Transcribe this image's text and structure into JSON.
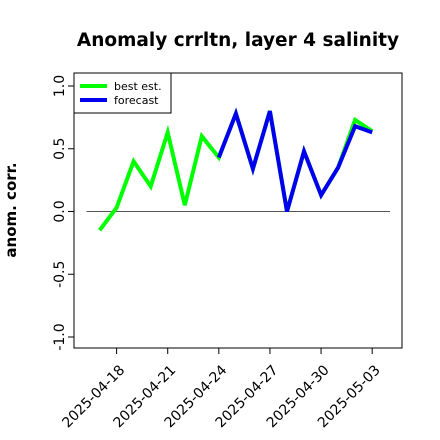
{
  "chart_data": {
    "type": "line",
    "title": "Anomaly crrltn, layer 4 salinity",
    "ylabel": "anom. corr.",
    "xlabel": "",
    "ylim": [
      -1.0,
      1.0
    ],
    "yticks": [
      -1.0,
      -0.5,
      0.0,
      0.5,
      1.0
    ],
    "ytick_labels": [
      "-1.0",
      "-0.5",
      "0.0",
      "0.5",
      "1.0"
    ],
    "x": [
      "2025-04-17",
      "2025-04-18",
      "2025-04-19",
      "2025-04-20",
      "2025-04-21",
      "2025-04-22",
      "2025-04-23",
      "2025-04-24",
      "2025-04-25",
      "2025-04-26",
      "2025-04-27",
      "2025-04-28",
      "2025-04-29",
      "2025-04-30",
      "2025-05-01",
      "2025-05-02",
      "2025-05-03"
    ],
    "xlim": [
      "2025-04-15T12:00",
      "2025-05-04T18:00"
    ],
    "xticks": [
      "2025-04-18",
      "2025-04-21",
      "2025-04-24",
      "2025-04-27",
      "2025-04-30",
      "2025-05-03"
    ],
    "xtick_labels": [
      "2025-04-18",
      "2025-04-21",
      "2025-04-24",
      "2025-04-27",
      "2025-04-30",
      "2025-05-03"
    ],
    "highlighted_xtick": "2025-04-24",
    "zero_line": 0.0,
    "series": [
      {
        "name": "best est.",
        "color": "#00ff00",
        "values": [
          -0.15,
          0.03,
          0.4,
          0.2,
          0.63,
          0.05,
          0.6,
          0.43,
          0.78,
          0.34,
          0.8,
          0.0,
          0.48,
          0.13,
          0.35,
          0.73,
          0.64
        ]
      },
      {
        "name": "forecast",
        "color": "#0000ee",
        "values": [
          null,
          null,
          null,
          null,
          null,
          null,
          null,
          0.43,
          0.78,
          0.34,
          0.8,
          0.0,
          0.48,
          0.13,
          0.35,
          0.68,
          0.63
        ]
      }
    ],
    "legend": {
      "placement": "top-left",
      "entries": [
        "best est.",
        "forecast"
      ]
    },
    "colors": {
      "highlight_tick_label": "#228b22",
      "zero_line": "#555555"
    }
  }
}
